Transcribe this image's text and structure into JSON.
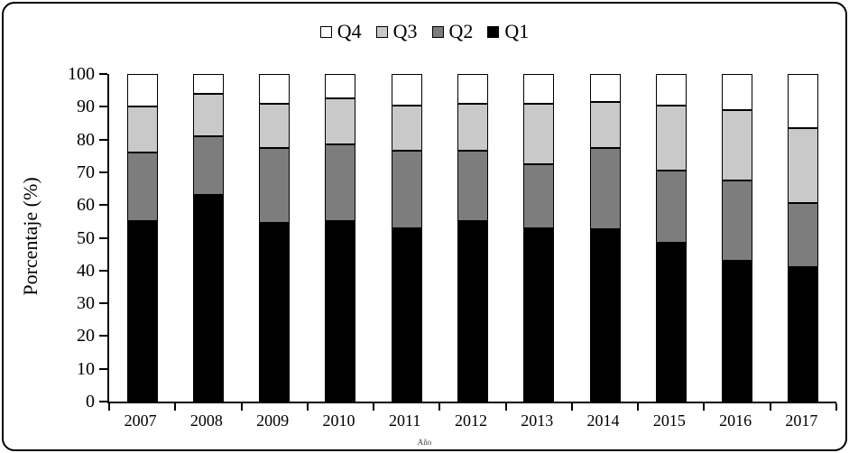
{
  "chart_data": {
    "type": "bar",
    "stacked": true,
    "title": "",
    "ylabel": "Porcentaje (%)",
    "xlabel": "Año",
    "ylim": [
      0,
      100
    ],
    "yticks": [
      0,
      10,
      20,
      30,
      40,
      50,
      60,
      70,
      80,
      90,
      100
    ],
    "grid": false,
    "legend_position": "top",
    "legend_order": [
      "Q4",
      "Q3",
      "Q2",
      "Q1"
    ],
    "categories": [
      "2007",
      "2008",
      "2009",
      "2010",
      "2011",
      "2012",
      "2013",
      "2014",
      "2015",
      "2016",
      "2017"
    ],
    "series": [
      {
        "name": "Q1",
        "color": "#000000",
        "values": [
          55,
          63,
          54.5,
          55,
          53,
          55,
          53,
          52.5,
          48.5,
          43,
          41
        ]
      },
      {
        "name": "Q2",
        "color": "#7d7d7d",
        "values": [
          21,
          18,
          23,
          23.5,
          23.5,
          21.5,
          19.5,
          25,
          22,
          24.5,
          19.5
        ]
      },
      {
        "name": "Q3",
        "color": "#c9c9c9",
        "values": [
          14,
          13,
          13.5,
          14,
          14,
          14.5,
          18.5,
          14,
          20,
          21.5,
          23
        ]
      },
      {
        "name": "Q4",
        "color": "#ffffff",
        "values": [
          10,
          6,
          9,
          7.5,
          9.5,
          9,
          9,
          8.5,
          9.5,
          11,
          16.5
        ]
      }
    ]
  }
}
